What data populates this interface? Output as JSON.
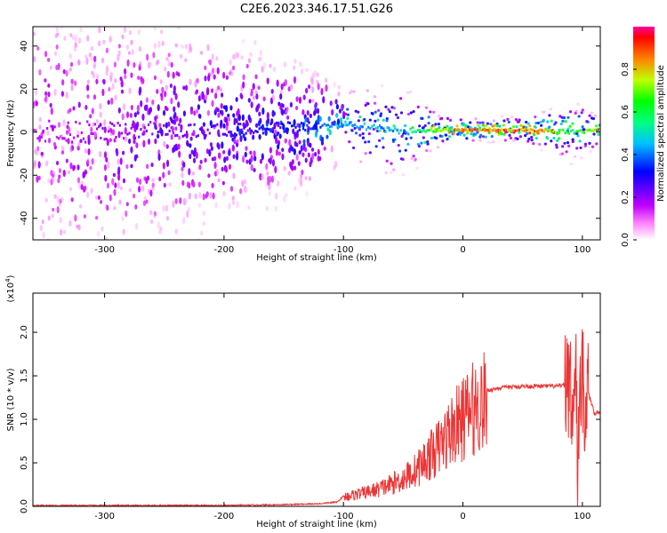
{
  "figure_title": "C2E6.2023.346.17.51.G26",
  "chart_data": [
    {
      "type": "heatmap",
      "name": "spectrogram",
      "xlabel": "Height of straight line (km)",
      "ylabel": "Frequency (Hz)",
      "xlim": [
        -360,
        115
      ],
      "ylim": [
        -50,
        49
      ],
      "xticks": [
        -300,
        -200,
        -100,
        0,
        100
      ],
      "yticks": [
        -40,
        -20,
        0,
        20,
        40
      ],
      "colorbar": {
        "label": "Normalized spectral amplitude",
        "range": [
          0.0,
          1.0
        ],
        "ticks": [
          0.0,
          0.2,
          0.4,
          0.6,
          0.8
        ],
        "tick_labels": [
          "0.0",
          "0.2",
          "0.4",
          "0.6",
          "0.8"
        ],
        "colormap": [
          "#ffffff",
          "#ff00ff",
          "#8000ff",
          "#0000ff",
          "#00ffff",
          "#00ff00",
          "#ffff00",
          "#ff8000",
          "#ff0000"
        ]
      },
      "description_points": [
        {
          "x": -355,
          "center_hz": 0,
          "spread_hz": 45,
          "amplitude": 0.15
        },
        {
          "x": -150,
          "center_hz": 2,
          "spread_hz": 20,
          "amplitude": 0.3
        },
        {
          "x": -100,
          "center_hz": 4,
          "spread_hz": 10,
          "amplitude": 0.45
        },
        {
          "x": -50,
          "center_hz": 0,
          "spread_hz": 12,
          "amplitude": 0.45
        },
        {
          "x": -20,
          "center_hz": 1,
          "spread_hz": 4,
          "amplitude": 0.75
        },
        {
          "x": 0,
          "center_hz": 1,
          "spread_hz": 3,
          "amplitude": 0.85
        },
        {
          "x": 50,
          "center_hz": 1,
          "spread_hz": 3,
          "amplitude": 0.9
        },
        {
          "x": 95,
          "center_hz": 0,
          "spread_hz": 8,
          "amplitude": 0.6
        },
        {
          "x": 115,
          "center_hz": 1,
          "spread_hz": 3,
          "amplitude": 0.85
        }
      ]
    },
    {
      "type": "line",
      "name": "snr",
      "xlabel": "Height of straight line (km)",
      "ylabel": "SNR (10 * v/v)",
      "yscale_label": "(x10",
      "yscale_exp": "4",
      "xlim": [
        -360,
        115
      ],
      "ylim": [
        0,
        2.45
      ],
      "xticks": [
        -300,
        -200,
        -100,
        0,
        100
      ],
      "yticks": [
        0.0,
        0.5,
        1.0,
        1.5,
        2.0
      ],
      "ytick_labels": [
        "0.0",
        "0.5",
        "1.0",
        "1.5",
        "2.0"
      ],
      "color": "#ee3333",
      "series": [
        {
          "name": "SNR",
          "x": [
            -360,
            -300,
            -200,
            -150,
            -120,
            -105,
            -100,
            -90,
            -80,
            -70,
            -60,
            -50,
            -40,
            -30,
            -20,
            -10,
            0,
            10,
            20,
            30,
            40,
            50,
            60,
            70,
            80,
            85,
            88,
            90,
            92,
            94,
            96,
            98,
            100,
            102,
            105,
            110,
            115
          ],
          "y": [
            0.01,
            0.01,
            0.01,
            0.02,
            0.03,
            0.05,
            0.12,
            0.15,
            0.18,
            0.22,
            0.28,
            0.35,
            0.45,
            0.6,
            0.75,
            0.95,
            1.1,
            1.25,
            1.33,
            1.36,
            1.37,
            1.38,
            1.38,
            1.38,
            1.38,
            1.39,
            1.45,
            1.6,
            0.6,
            1.8,
            0.3,
            1.5,
            1.35,
            1.25,
            1.3,
            1.08,
            1.08
          ]
        }
      ]
    }
  ]
}
